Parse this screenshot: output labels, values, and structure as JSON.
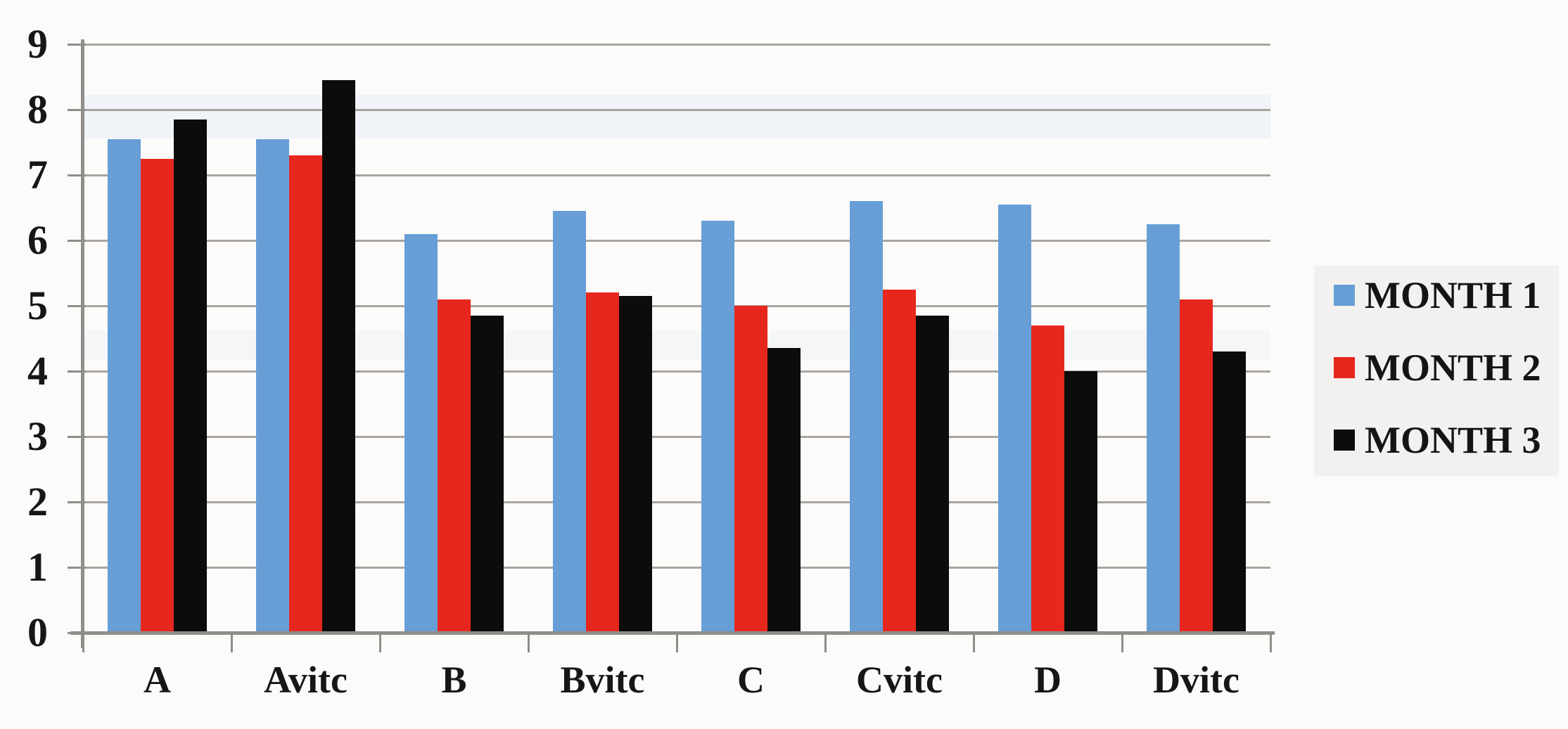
{
  "chart_data": {
    "type": "bar",
    "title": "",
    "xlabel": "",
    "ylabel": "",
    "categories": [
      "A",
      "Avitc",
      "B",
      "Bvitc",
      "C",
      "Cvitc",
      "D",
      "Dvitc"
    ],
    "series": [
      {
        "name": "MONTH 1",
        "color": "#679ed6",
        "values": [
          7.55,
          7.55,
          6.1,
          6.45,
          6.3,
          6.6,
          6.55,
          6.25
        ]
      },
      {
        "name": "MONTH 2",
        "color": "#e7271d",
        "values": [
          7.25,
          7.3,
          5.1,
          5.2,
          5.0,
          5.25,
          4.7,
          5.1
        ]
      },
      {
        "name": "MONTH 3",
        "color": "#0c0c0c",
        "values": [
          7.85,
          8.45,
          4.85,
          5.15,
          4.35,
          4.85,
          4.0,
          4.3
        ]
      }
    ],
    "ylim": [
      0,
      9
    ],
    "yticks": [
      0,
      1,
      2,
      3,
      4,
      5,
      6,
      7,
      8,
      9
    ],
    "grid": true,
    "legend_position": "right",
    "gridline_color": "#a8a4a0",
    "axis_color": "#8f8d8a",
    "plot_background": "#ffffff"
  }
}
